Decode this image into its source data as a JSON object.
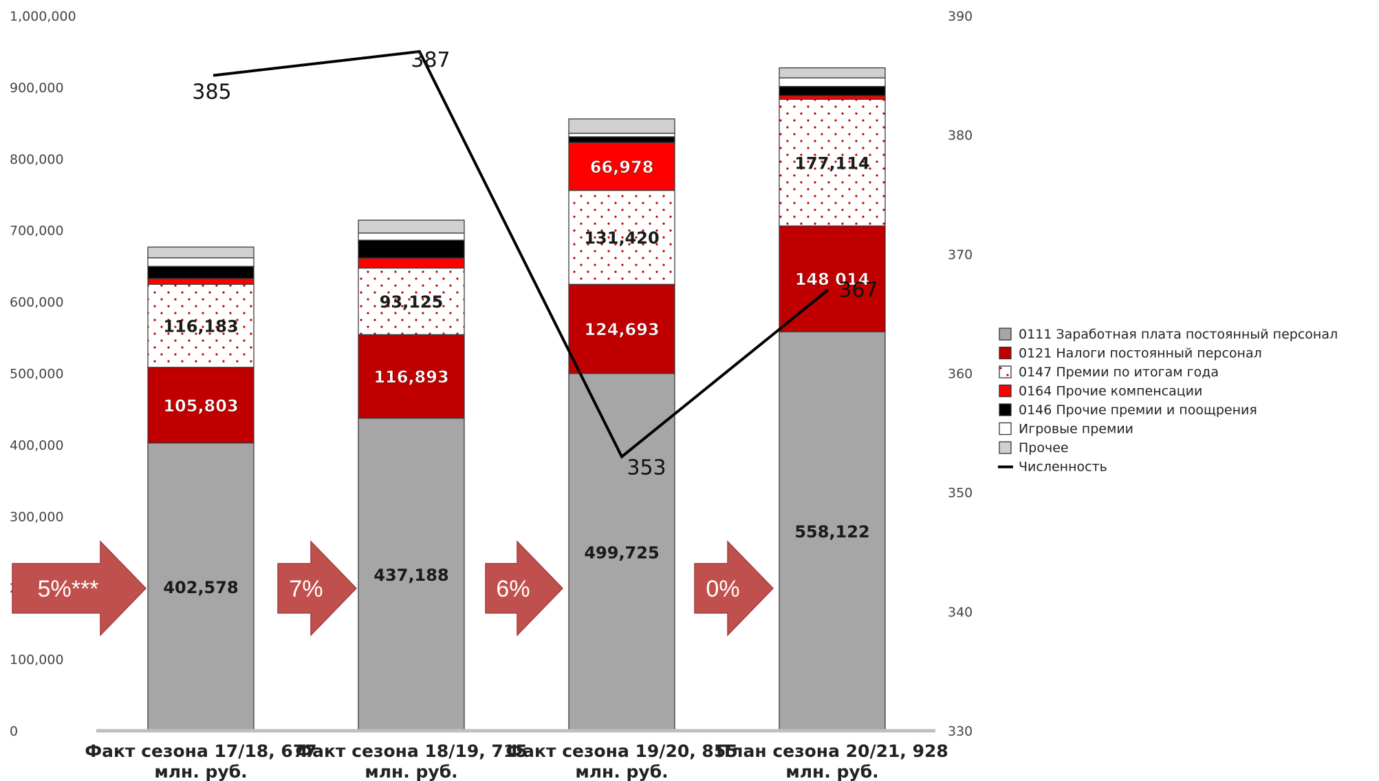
{
  "chart_data": {
    "type": "bar",
    "stacked": true,
    "categories": [
      [
        "Факт сезона 17/18, 677",
        "млн. руб."
      ],
      [
        "Факт сезона 18/19, 715",
        "млн. руб."
      ],
      [
        "Факт сезона 19/20, 855",
        "млн. руб."
      ],
      [
        "План сезона 20/21, 928",
        "млн. руб."
      ]
    ],
    "ylim": [
      0,
      1000000
    ],
    "yticks": [
      "0",
      "100,000",
      "200,000",
      "300,000",
      "400,000",
      "500,000",
      "600,000",
      "700,000",
      "800,000",
      "900,000",
      "1,000,000"
    ],
    "y2lim": [
      330,
      390
    ],
    "y2ticks": [
      "330",
      "340",
      "350",
      "360",
      "370",
      "380",
      "390"
    ],
    "grid": false,
    "legend_position": "right",
    "series": [
      {
        "name": "0111 Заработная плата постоянный персонал",
        "color": "#a6a6a6",
        "pattern": "solid",
        "values": [
          402578,
          437188,
          499725,
          558122
        ],
        "labels": [
          "402,578",
          "437,188",
          "499,725",
          "558,122"
        ]
      },
      {
        "name": "0121 Налоги постоянный персонал",
        "color": "#c00000",
        "pattern": "solid",
        "values": [
          105803,
          116893,
          124693,
          148014
        ],
        "labels": [
          "105,803",
          "116,893",
          "124,693",
          "148 014"
        ]
      },
      {
        "name": "0147 Премии по итогам года",
        "color": "#ffffff",
        "pattern": "dots",
        "values": [
          116183,
          93125,
          131420,
          177114
        ],
        "labels": [
          "116,183",
          "93,125",
          "131,420",
          "177,114"
        ]
      },
      {
        "name": "0164 Прочие компенсации",
        "color": "#ff0000",
        "pattern": "solid",
        "values": [
          8000,
          14000,
          66978,
          5000
        ],
        "labels": [
          "",
          "",
          "66,978",
          ""
        ]
      },
      {
        "name": "0146 Прочие премии и поощрения",
        "color": "#000000",
        "pattern": "solid",
        "values": [
          17000,
          25000,
          8000,
          13000
        ],
        "labels": [
          "",
          "",
          "",
          ""
        ]
      },
      {
        "name": "Игровые премии",
        "color": "#ffffff",
        "pattern": "solid",
        "values": [
          12000,
          10000,
          5000,
          12000
        ],
        "labels": [
          "",
          "",
          "",
          ""
        ]
      },
      {
        "name": "Прочее",
        "color": "#d0d0d0",
        "pattern": "solid",
        "values": [
          15000,
          18000,
          20000,
          14000
        ],
        "labels": [
          "",
          "",
          "",
          ""
        ]
      }
    ],
    "line": {
      "name": "Численность",
      "axis": "right",
      "color": "#000000",
      "values": [
        385,
        387,
        353,
        367
      ],
      "labels": [
        "385",
        "387",
        "353",
        "367"
      ]
    },
    "annotations": [
      "5%***",
      "7%",
      "6%",
      "0%"
    ]
  },
  "colors": {
    "arrow": "#c0504d",
    "axis": "#bfbfbf"
  }
}
